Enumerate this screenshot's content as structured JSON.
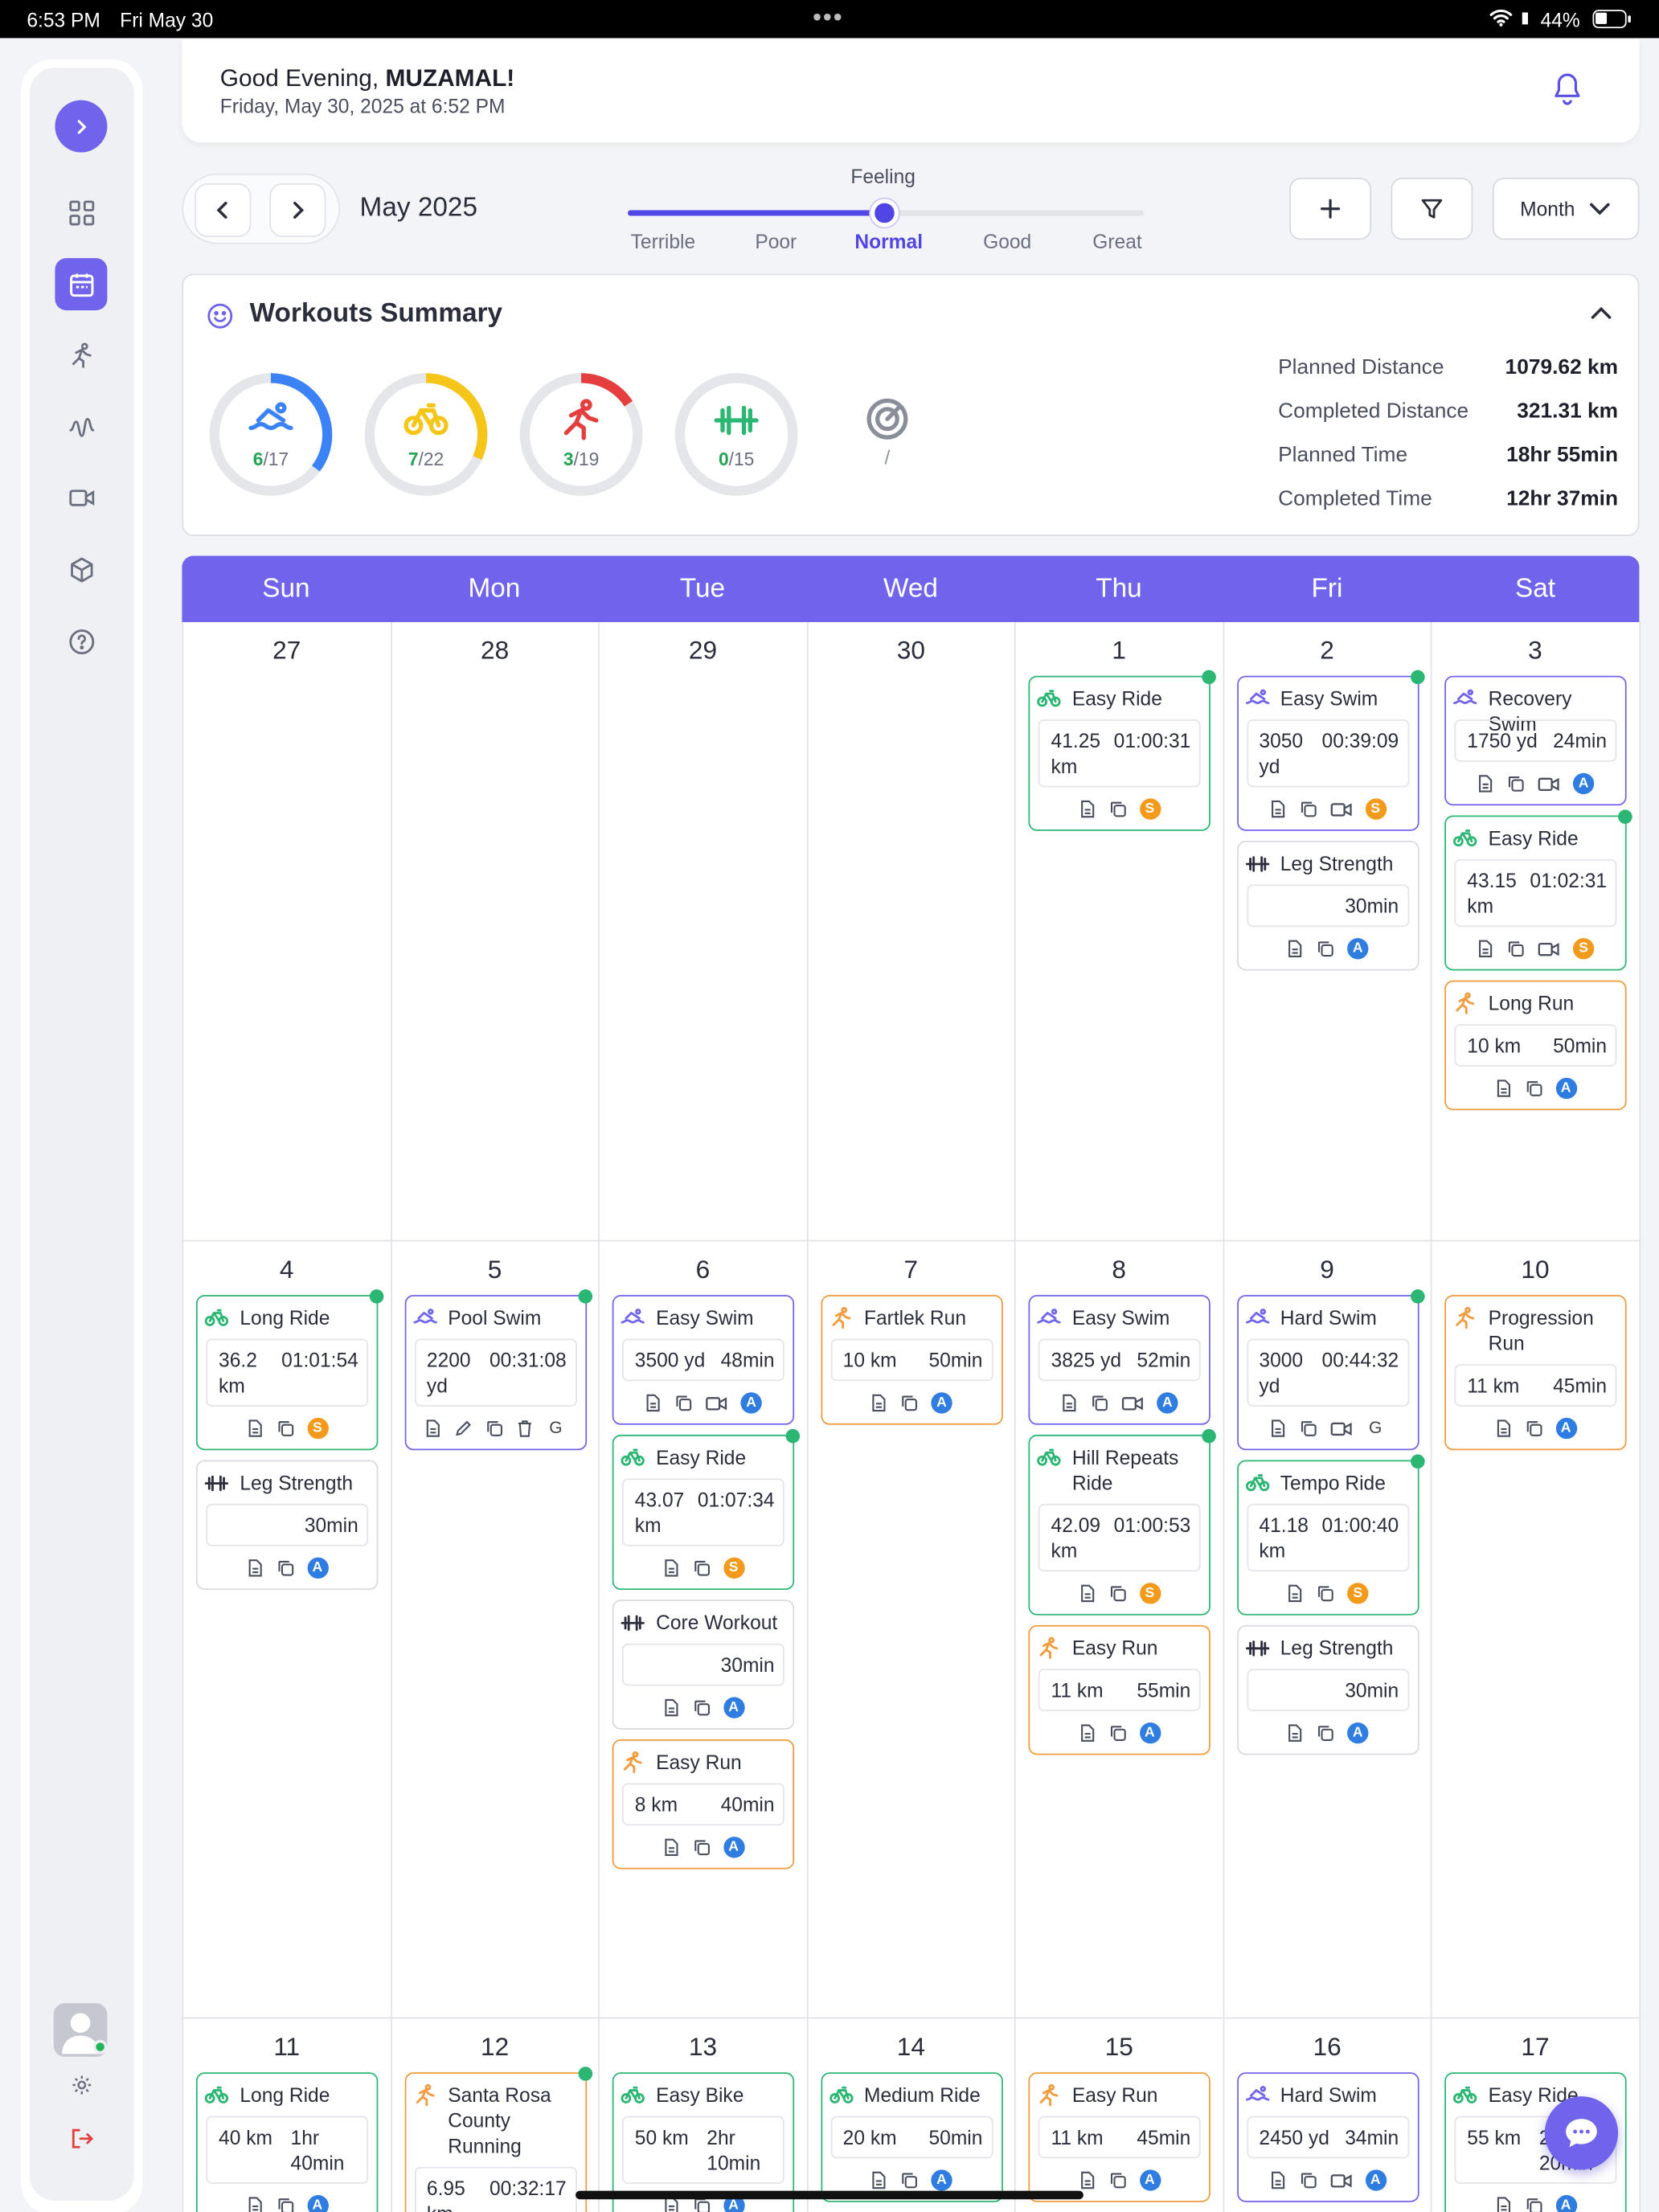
{
  "status_bar": {
    "time": "6:53 PM",
    "date": "Fri May 30",
    "battery": "44%"
  },
  "header": {
    "greeting": "Good Evening,",
    "user": "MUZAMAL!",
    "datetime": "Friday, May 30, 2025 at 6:52 PM"
  },
  "toolbar": {
    "month_label": "May 2025",
    "feeling_title": "Feeling",
    "feelings": [
      "Terrible",
      "Poor",
      "Normal",
      "Good",
      "Great"
    ],
    "selected_feeling": "Normal",
    "feeling_level_fraction": 0.5,
    "view_select": "Month"
  },
  "summary": {
    "title": "Workouts Summary",
    "rings": [
      {
        "sport": "swim",
        "done": "6",
        "total": "/17",
        "color": "#3b82f6",
        "fraction": 0.353
      },
      {
        "sport": "bike",
        "done": "7",
        "total": "/22",
        "color": "#f5c518",
        "fraction": 0.318
      },
      {
        "sport": "run",
        "done": "3",
        "total": "/19",
        "color": "#e53e3e",
        "fraction": 0.158
      },
      {
        "sport": "strength",
        "done": "0",
        "total": "/15",
        "color": "#2bb673",
        "fraction": 0
      }
    ],
    "other_label": "/",
    "stats": [
      {
        "label": "Planned Distance",
        "value": "1079.62 km"
      },
      {
        "label": "Completed Distance",
        "value": "321.31 km"
      },
      {
        "label": "Planned Time",
        "value": "18hr 55min"
      },
      {
        "label": "Completed Time",
        "value": "12hr 37min"
      }
    ]
  },
  "calendar": {
    "weekdays": [
      "Sun",
      "Mon",
      "Tue",
      "Wed",
      "Thu",
      "Fri",
      "Sat"
    ],
    "weeks": [
      {
        "days": [
          {
            "num": "27",
            "workouts": []
          },
          {
            "num": "28",
            "workouts": []
          },
          {
            "num": "29",
            "workouts": []
          },
          {
            "num": "30",
            "workouts": []
          },
          {
            "num": "1",
            "workouts": [
              {
                "type": "bike",
                "title": "Easy Ride",
                "v1": "41.25 km",
                "v2": "01:00:31",
                "badge": "S",
                "done": true
              }
            ]
          },
          {
            "num": "2",
            "workouts": [
              {
                "type": "swim",
                "title": "Easy Swim",
                "v1": "3050 yd",
                "v2": "00:39:09",
                "badge": "S",
                "video": true,
                "done": true
              },
              {
                "type": "str",
                "title": "Leg Strength",
                "v1": "",
                "v2": "30min",
                "badge": "A"
              }
            ]
          },
          {
            "num": "3",
            "workouts": [
              {
                "type": "swim",
                "title": "Recovery Swim",
                "v1": "1750 yd",
                "v2": "24min",
                "badge": "A",
                "video": true
              },
              {
                "type": "bike",
                "title": "Easy Ride",
                "v1": "43.15 km",
                "v2": "01:02:31",
                "badge": "S",
                "video": true,
                "done": true
              },
              {
                "type": "run",
                "title": "Long Run",
                "v1": "10 km",
                "v2": "50min",
                "badge": "A"
              }
            ]
          }
        ]
      },
      {
        "days": [
          {
            "num": "4",
            "workouts": [
              {
                "type": "bike",
                "title": "Long Ride",
                "v1": "36.2 km",
                "v2": "01:01:54",
                "badge": "S",
                "done": true
              },
              {
                "type": "str",
                "title": "Leg Strength",
                "v1": "",
                "v2": "30min",
                "badge": "A"
              }
            ]
          },
          {
            "num": "5",
            "workouts": [
              {
                "type": "swim",
                "title": "Pool Swim",
                "v1": "2200 yd",
                "v2": "00:31:08",
                "badge": "G",
                "edit": true,
                "done": true
              }
            ]
          },
          {
            "num": "6",
            "workouts": [
              {
                "type": "swim",
                "title": "Easy Swim",
                "v1": "3500 yd",
                "v2": "48min",
                "badge": "A",
                "video": true
              },
              {
                "type": "bike",
                "title": "Easy Ride",
                "v1": "43.07 km",
                "v2": "01:07:34",
                "badge": "S",
                "done": true
              },
              {
                "type": "str",
                "title": "Core Workout",
                "v1": "",
                "v2": "30min",
                "badge": "A"
              },
              {
                "type": "run",
                "title": "Easy Run",
                "v1": "8 km",
                "v2": "40min",
                "badge": "A"
              }
            ]
          },
          {
            "num": "7",
            "workouts": [
              {
                "type": "run",
                "title": "Fartlek Run",
                "v1": "10 km",
                "v2": "50min",
                "badge": "A"
              }
            ]
          },
          {
            "num": "8",
            "workouts": [
              {
                "type": "swim",
                "title": "Easy Swim",
                "v1": "3825 yd",
                "v2": "52min",
                "badge": "A",
                "video": true
              },
              {
                "type": "bike",
                "title": "Hill Repeats Ride",
                "v1": "42.09 km",
                "v2": "01:00:53",
                "badge": "S",
                "done": true
              },
              {
                "type": "run",
                "title": "Easy Run",
                "v1": "11 km",
                "v2": "55min",
                "badge": "A"
              }
            ]
          },
          {
            "num": "9",
            "workouts": [
              {
                "type": "swim",
                "title": "Hard Swim",
                "v1": "3000 yd",
                "v2": "00:44:32",
                "badge": "G",
                "video": true,
                "done": true
              },
              {
                "type": "bike",
                "title": "Tempo Ride",
                "v1": "41.18 km",
                "v2": "01:00:40",
                "badge": "S",
                "done": true
              },
              {
                "type": "str",
                "title": "Leg Strength",
                "v1": "",
                "v2": "30min",
                "badge": "A"
              }
            ]
          },
          {
            "num": "10",
            "workouts": [
              {
                "type": "run",
                "title": "Progression Run",
                "v1": "11 km",
                "v2": "45min",
                "badge": "A"
              }
            ]
          }
        ]
      },
      {
        "days": [
          {
            "num": "11",
            "workouts": [
              {
                "type": "bike",
                "title": "Long Ride",
                "v1": "40 km",
                "v2": "1hr 40min",
                "badge": "A"
              }
            ]
          },
          {
            "num": "12",
            "workouts": [
              {
                "type": "run",
                "title": "Santa Rosa County Running",
                "v1": "6.95 km",
                "v2": "00:32:17",
                "badge": "",
                "done": true
              }
            ]
          },
          {
            "num": "13",
            "workouts": [
              {
                "type": "bike",
                "title": "Easy Bike",
                "v1": "50 km",
                "v2": "2hr 10min",
                "badge": "A"
              }
            ]
          },
          {
            "num": "14",
            "workouts": [
              {
                "type": "bike",
                "title": "Medium Ride",
                "v1": "20 km",
                "v2": "50min",
                "badge": "A"
              }
            ]
          },
          {
            "num": "15",
            "workouts": [
              {
                "type": "run",
                "title": "Easy Run",
                "v1": "11 km",
                "v2": "45min",
                "badge": "A"
              }
            ]
          },
          {
            "num": "16",
            "workouts": [
              {
                "type": "swim",
                "title": "Hard Swim",
                "v1": "2450 yd",
                "v2": "34min",
                "badge": "A",
                "video": true
              }
            ]
          },
          {
            "num": "17",
            "workouts": [
              {
                "type": "bike",
                "title": "Easy Ride",
                "v1": "55 km",
                "v2": "2hr 20min",
                "badge": "A"
              }
            ]
          }
        ]
      }
    ]
  },
  "icons": {
    "sidebar": [
      "chevron-right-icon",
      "dashboard-grid-icon",
      "calendar-icon",
      "running-icon",
      "pulse-icon",
      "video-icon",
      "box-icon",
      "help-icon"
    ],
    "sidebar_bottom": [
      "avatar",
      "settings-icon",
      "logout-icon"
    ],
    "header": "bell-icon",
    "toolbar": [
      "chevron-left-icon",
      "chevron-right-icon",
      "plus-icon",
      "filter-icon",
      "chevron-down-icon"
    ],
    "workout_actions": [
      "document-icon",
      "copy-icon",
      "video-icon",
      "edit-icon",
      "trash-icon"
    ],
    "floating": "chat-icon"
  },
  "colors": {
    "accent": "#7164ec",
    "bike": "#2bb673",
    "swim": "#7164ec",
    "run": "#f39a3c",
    "badge_S": "#f39a1c",
    "badge_A": "#2f7de1"
  }
}
